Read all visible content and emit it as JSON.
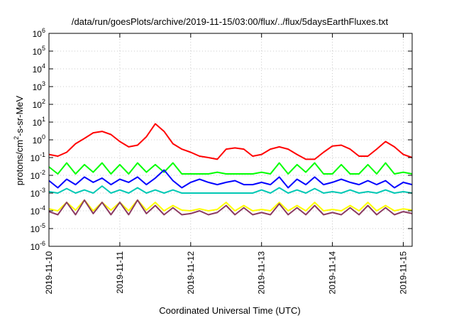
{
  "chart_data": {
    "type": "line",
    "title": "/data/run/goesPlots/archive/2019-11-15/03:00/flux/../flux/5daysEarthFluxes.txt",
    "xlabel": "Coordinated Universal Time (UTC)",
    "ylabel": {
      "base": "protons/cm",
      "sup": "2",
      "rest": "-s-sr-MeV"
    },
    "yscale": "log",
    "ylim": [
      1e-06,
      1000000.0
    ],
    "yticks": [
      {
        "exp": -6
      },
      {
        "exp": -5
      },
      {
        "exp": -4
      },
      {
        "exp": -3
      },
      {
        "exp": -2
      },
      {
        "exp": -1
      },
      {
        "exp": 0
      },
      {
        "exp": 1
      },
      {
        "exp": 2
      },
      {
        "exp": 3
      },
      {
        "exp": 4
      },
      {
        "exp": 5
      },
      {
        "exp": 6
      }
    ],
    "xlim": [
      "2019-11-10 00:00",
      "2019-11-15 03:00"
    ],
    "xticks": [
      "2019-11-10",
      "2019-11-11",
      "2019-11-12",
      "2019-11-13",
      "2019-11-14",
      "2019-11-15"
    ],
    "grid": true,
    "series": [
      {
        "color": "#ff0000",
        "x": [
          "2019-11-10 00:00",
          "2019-11-10 03:00",
          "2019-11-10 06:00",
          "2019-11-10 09:00",
          "2019-11-10 12:00",
          "2019-11-10 15:00",
          "2019-11-10 18:00",
          "2019-11-10 21:00",
          "2019-11-11 00:00",
          "2019-11-11 03:00",
          "2019-11-11 06:00",
          "2019-11-11 09:00",
          "2019-11-11 12:00",
          "2019-11-11 15:00",
          "2019-11-11 18:00",
          "2019-11-11 21:00",
          "2019-11-12 00:00",
          "2019-11-12 03:00",
          "2019-11-12 06:00",
          "2019-11-12 09:00",
          "2019-11-12 12:00",
          "2019-11-12 15:00",
          "2019-11-12 18:00",
          "2019-11-12 21:00",
          "2019-11-13 00:00",
          "2019-11-13 03:00",
          "2019-11-13 06:00",
          "2019-11-13 09:00",
          "2019-11-13 12:00",
          "2019-11-13 15:00",
          "2019-11-13 18:00",
          "2019-11-13 21:00",
          "2019-11-14 00:00",
          "2019-11-14 03:00",
          "2019-11-14 06:00",
          "2019-11-14 09:00",
          "2019-11-14 12:00",
          "2019-11-14 15:00",
          "2019-11-14 18:00",
          "2019-11-14 21:00",
          "2019-11-15 00:00",
          "2019-11-15 03:00"
        ],
        "y": [
          0.15,
          0.12,
          0.2,
          0.6,
          1.2,
          2.5,
          3.0,
          2.0,
          0.8,
          0.4,
          0.5,
          1.5,
          8.0,
          3.0,
          0.6,
          0.3,
          0.2,
          0.12,
          0.1,
          0.08,
          0.3,
          0.35,
          0.3,
          0.12,
          0.15,
          0.3,
          0.4,
          0.3,
          0.15,
          0.08,
          0.08,
          0.2,
          0.45,
          0.5,
          0.3,
          0.12,
          0.12,
          0.3,
          0.8,
          0.4,
          0.15,
          0.1
        ]
      },
      {
        "color": "#00ff00",
        "x": [
          "2019-11-10 00:00",
          "2019-11-10 03:00",
          "2019-11-10 06:00",
          "2019-11-10 09:00",
          "2019-11-10 12:00",
          "2019-11-10 15:00",
          "2019-11-10 18:00",
          "2019-11-10 21:00",
          "2019-11-11 00:00",
          "2019-11-11 03:00",
          "2019-11-11 06:00",
          "2019-11-11 09:00",
          "2019-11-11 12:00",
          "2019-11-11 15:00",
          "2019-11-11 18:00",
          "2019-11-11 21:00",
          "2019-11-12 00:00",
          "2019-11-12 03:00",
          "2019-11-12 06:00",
          "2019-11-12 09:00",
          "2019-11-12 12:00",
          "2019-11-12 15:00",
          "2019-11-12 18:00",
          "2019-11-12 21:00",
          "2019-11-13 00:00",
          "2019-11-13 03:00",
          "2019-11-13 06:00",
          "2019-11-13 09:00",
          "2019-11-13 12:00",
          "2019-11-13 15:00",
          "2019-11-13 18:00",
          "2019-11-13 21:00",
          "2019-11-14 00:00",
          "2019-11-14 03:00",
          "2019-11-14 06:00",
          "2019-11-14 09:00",
          "2019-11-14 12:00",
          "2019-11-14 15:00",
          "2019-11-14 18:00",
          "2019-11-14 21:00",
          "2019-11-15 00:00",
          "2019-11-15 03:00"
        ],
        "y": [
          0.03,
          0.012,
          0.05,
          0.012,
          0.04,
          0.015,
          0.05,
          0.012,
          0.04,
          0.012,
          0.05,
          0.015,
          0.04,
          0.015,
          0.05,
          0.012,
          0.012,
          0.012,
          0.012,
          0.015,
          0.012,
          0.012,
          0.012,
          0.012,
          0.015,
          0.012,
          0.05,
          0.012,
          0.04,
          0.015,
          0.05,
          0.012,
          0.012,
          0.04,
          0.012,
          0.012,
          0.04,
          0.012,
          0.05,
          0.012,
          0.015,
          0.012
        ]
      },
      {
        "color": "#0000ff",
        "x": [
          "2019-11-10 00:00",
          "2019-11-10 03:00",
          "2019-11-10 06:00",
          "2019-11-10 09:00",
          "2019-11-10 12:00",
          "2019-11-10 15:00",
          "2019-11-10 18:00",
          "2019-11-10 21:00",
          "2019-11-11 00:00",
          "2019-11-11 03:00",
          "2019-11-11 06:00",
          "2019-11-11 09:00",
          "2019-11-11 12:00",
          "2019-11-11 15:00",
          "2019-11-11 18:00",
          "2019-11-11 21:00",
          "2019-11-12 00:00",
          "2019-11-12 03:00",
          "2019-11-12 06:00",
          "2019-11-12 09:00",
          "2019-11-12 12:00",
          "2019-11-12 15:00",
          "2019-11-12 18:00",
          "2019-11-12 21:00",
          "2019-11-13 00:00",
          "2019-11-13 03:00",
          "2019-11-13 06:00",
          "2019-11-13 09:00",
          "2019-11-13 12:00",
          "2019-11-13 15:00",
          "2019-11-13 18:00",
          "2019-11-13 21:00",
          "2019-11-14 00:00",
          "2019-11-14 03:00",
          "2019-11-14 06:00",
          "2019-11-14 09:00",
          "2019-11-14 12:00",
          "2019-11-14 15:00",
          "2019-11-14 18:00",
          "2019-11-14 21:00",
          "2019-11-15 00:00",
          "2019-11-15 03:00"
        ],
        "y": [
          0.005,
          0.002,
          0.006,
          0.003,
          0.008,
          0.004,
          0.007,
          0.003,
          0.006,
          0.004,
          0.008,
          0.003,
          0.007,
          0.02,
          0.005,
          0.002,
          0.004,
          0.006,
          0.004,
          0.003,
          0.004,
          0.005,
          0.003,
          0.003,
          0.004,
          0.003,
          0.008,
          0.002,
          0.006,
          0.003,
          0.008,
          0.003,
          0.004,
          0.006,
          0.004,
          0.003,
          0.005,
          0.003,
          0.005,
          0.002,
          0.004,
          0.003
        ]
      },
      {
        "color": "#00c8b4",
        "x": [
          "2019-11-10 00:00",
          "2019-11-10 03:00",
          "2019-11-10 06:00",
          "2019-11-10 09:00",
          "2019-11-10 12:00",
          "2019-11-10 15:00",
          "2019-11-10 18:00",
          "2019-11-10 21:00",
          "2019-11-11 00:00",
          "2019-11-11 03:00",
          "2019-11-11 06:00",
          "2019-11-11 09:00",
          "2019-11-11 12:00",
          "2019-11-11 15:00",
          "2019-11-11 18:00",
          "2019-11-11 21:00",
          "2019-11-12 00:00",
          "2019-11-12 03:00",
          "2019-11-12 06:00",
          "2019-11-12 09:00",
          "2019-11-12 12:00",
          "2019-11-12 15:00",
          "2019-11-12 18:00",
          "2019-11-12 21:00",
          "2019-11-13 00:00",
          "2019-11-13 03:00",
          "2019-11-13 06:00",
          "2019-11-13 09:00",
          "2019-11-13 12:00",
          "2019-11-13 15:00",
          "2019-11-13 18:00",
          "2019-11-13 21:00",
          "2019-11-14 00:00",
          "2019-11-14 03:00",
          "2019-11-14 06:00",
          "2019-11-14 09:00",
          "2019-11-14 12:00",
          "2019-11-14 15:00",
          "2019-11-14 18:00",
          "2019-11-14 21:00",
          "2019-11-15 00:00",
          "2019-11-15 03:00"
        ],
        "y": [
          0.0012,
          0.001,
          0.0018,
          0.001,
          0.0015,
          0.001,
          0.0025,
          0.001,
          0.0015,
          0.001,
          0.002,
          0.001,
          0.0015,
          0.001,
          0.0015,
          0.001,
          0.001,
          0.001,
          0.001,
          0.001,
          0.001,
          0.001,
          0.001,
          0.001,
          0.0015,
          0.001,
          0.002,
          0.001,
          0.0015,
          0.001,
          0.0018,
          0.001,
          0.0012,
          0.001,
          0.0015,
          0.001,
          0.0012,
          0.001,
          0.0015,
          0.001,
          0.0012,
          0.001
        ]
      },
      {
        "color": "#ffff00",
        "x": [
          "2019-11-10 00:00",
          "2019-11-10 03:00",
          "2019-11-10 06:00",
          "2019-11-10 09:00",
          "2019-11-10 12:00",
          "2019-11-10 15:00",
          "2019-11-10 18:00",
          "2019-11-10 21:00",
          "2019-11-11 00:00",
          "2019-11-11 03:00",
          "2019-11-11 06:00",
          "2019-11-11 09:00",
          "2019-11-11 12:00",
          "2019-11-11 15:00",
          "2019-11-11 18:00",
          "2019-11-11 21:00",
          "2019-11-12 00:00",
          "2019-11-12 03:00",
          "2019-11-12 06:00",
          "2019-11-12 09:00",
          "2019-11-12 12:00",
          "2019-11-12 15:00",
          "2019-11-12 18:00",
          "2019-11-12 21:00",
          "2019-11-13 00:00",
          "2019-11-13 03:00",
          "2019-11-13 06:00",
          "2019-11-13 09:00",
          "2019-11-13 12:00",
          "2019-11-13 15:00",
          "2019-11-13 18:00",
          "2019-11-13 21:00",
          "2019-11-14 00:00",
          "2019-11-14 03:00",
          "2019-11-14 06:00",
          "2019-11-14 09:00",
          "2019-11-14 12:00",
          "2019-11-14 15:00",
          "2019-11-14 18:00",
          "2019-11-14 21:00",
          "2019-11-15 00:00",
          "2019-11-15 03:00"
        ],
        "y": [
          0.00013,
          0.0001,
          0.0003,
          0.00011,
          0.0004,
          0.0001,
          0.0003,
          0.00011,
          0.0003,
          0.0001,
          0.0004,
          0.00011,
          0.0003,
          0.0001,
          0.0002,
          0.00011,
          0.0001,
          0.00013,
          0.0001,
          0.00012,
          0.0003,
          0.0001,
          0.0002,
          0.0001,
          0.00012,
          0.0001,
          0.0003,
          0.0001,
          0.0002,
          0.0001,
          0.0003,
          0.0001,
          0.00012,
          0.0001,
          0.0002,
          0.0001,
          0.0003,
          0.0001,
          0.0002,
          0.0001,
          0.00013,
          0.00011
        ]
      },
      {
        "color": "#8b3a62",
        "x": [
          "2019-11-10 00:00",
          "2019-11-10 03:00",
          "2019-11-10 06:00",
          "2019-11-10 09:00",
          "2019-11-10 12:00",
          "2019-11-10 15:00",
          "2019-11-10 18:00",
          "2019-11-10 21:00",
          "2019-11-11 00:00",
          "2019-11-11 03:00",
          "2019-11-11 06:00",
          "2019-11-11 09:00",
          "2019-11-11 12:00",
          "2019-11-11 15:00",
          "2019-11-11 18:00",
          "2019-11-11 21:00",
          "2019-11-12 00:00",
          "2019-11-12 03:00",
          "2019-11-12 06:00",
          "2019-11-12 09:00",
          "2019-11-12 12:00",
          "2019-11-12 15:00",
          "2019-11-12 18:00",
          "2019-11-12 21:00",
          "2019-11-13 00:00",
          "2019-11-13 03:00",
          "2019-11-13 06:00",
          "2019-11-13 09:00",
          "2019-11-13 12:00",
          "2019-11-13 15:00",
          "2019-11-13 18:00",
          "2019-11-13 21:00",
          "2019-11-14 00:00",
          "2019-11-14 03:00",
          "2019-11-14 06:00",
          "2019-11-14 09:00",
          "2019-11-14 12:00",
          "2019-11-14 15:00",
          "2019-11-14 18:00",
          "2019-11-14 21:00",
          "2019-11-15 00:00",
          "2019-11-15 03:00"
        ],
        "y": [
          9e-05,
          6e-05,
          0.0003,
          6e-05,
          0.0004,
          7e-05,
          0.0003,
          6e-05,
          0.0003,
          6e-05,
          0.0004,
          7e-05,
          0.0002,
          6e-05,
          0.00015,
          6e-05,
          7e-05,
          0.0001,
          6e-05,
          8e-05,
          0.0002,
          6e-05,
          0.00015,
          6e-05,
          8e-05,
          6e-05,
          0.00025,
          6e-05,
          0.00015,
          6e-05,
          0.0002,
          6e-05,
          8e-05,
          6e-05,
          0.00015,
          6e-05,
          0.0002,
          6e-05,
          0.00015,
          6e-05,
          9e-05,
          7e-05
        ]
      }
    ]
  }
}
